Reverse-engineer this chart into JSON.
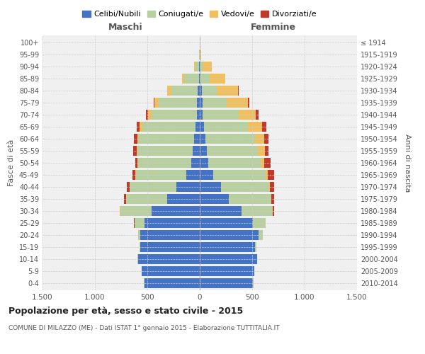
{
  "age_groups": [
    "100+",
    "95-99",
    "90-94",
    "85-89",
    "80-84",
    "75-79",
    "70-74",
    "65-69",
    "60-64",
    "55-59",
    "50-54",
    "45-49",
    "40-44",
    "35-39",
    "30-34",
    "25-29",
    "20-24",
    "15-19",
    "10-14",
    "5-9",
    "0-4"
  ],
  "birth_years": [
    "≤ 1914",
    "1915-1919",
    "1920-1924",
    "1925-1929",
    "1930-1934",
    "1935-1939",
    "1940-1944",
    "1945-1949",
    "1950-1954",
    "1955-1959",
    "1960-1964",
    "1965-1969",
    "1970-1974",
    "1975-1979",
    "1980-1984",
    "1985-1989",
    "1990-1994",
    "1995-1999",
    "2000-2004",
    "2005-2009",
    "2010-2014"
  ],
  "males": {
    "celibe": [
      2,
      2,
      5,
      10,
      20,
      30,
      30,
      40,
      55,
      65,
      80,
      130,
      220,
      310,
      460,
      530,
      570,
      570,
      590,
      555,
      530
    ],
    "coniugato": [
      0,
      3,
      35,
      140,
      250,
      360,
      430,
      510,
      530,
      530,
      510,
      480,
      450,
      390,
      300,
      95,
      20,
      5,
      3,
      1,
      1
    ],
    "vedovo": [
      0,
      2,
      12,
      22,
      38,
      42,
      32,
      22,
      12,
      8,
      5,
      3,
      2,
      2,
      1,
      0,
      0,
      0,
      0,
      0,
      0
    ],
    "divorziato": [
      0,
      0,
      0,
      0,
      0,
      5,
      22,
      30,
      32,
      32,
      22,
      32,
      22,
      20,
      5,
      2,
      0,
      0,
      0,
      0,
      0
    ]
  },
  "females": {
    "nubile": [
      2,
      2,
      5,
      10,
      20,
      30,
      30,
      40,
      55,
      65,
      80,
      130,
      200,
      280,
      400,
      510,
      560,
      530,
      545,
      520,
      510
    ],
    "coniugata": [
      0,
      2,
      22,
      85,
      145,
      230,
      340,
      420,
      470,
      490,
      500,
      500,
      460,
      400,
      295,
      115,
      40,
      10,
      3,
      1,
      1
    ],
    "vedova": [
      2,
      12,
      90,
      145,
      200,
      200,
      165,
      135,
      90,
      65,
      38,
      22,
      10,
      5,
      3,
      2,
      0,
      0,
      0,
      0,
      0
    ],
    "divorziata": [
      0,
      0,
      0,
      0,
      5,
      12,
      28,
      38,
      38,
      38,
      55,
      55,
      42,
      22,
      10,
      2,
      0,
      0,
      0,
      0,
      0
    ]
  },
  "colors": {
    "celibe": "#4472c4",
    "coniugato": "#b8cfa0",
    "vedovo": "#f0c060",
    "divorziato": "#c0392b"
  },
  "xlim": 1500,
  "xlabel_left": "Maschi",
  "xlabel_right": "Femmine",
  "ylabel_left": "Fasce di età",
  "ylabel_right": "Anni di nascita",
  "title": "Popolazione per età, sesso e stato civile - 2015",
  "subtitle": "COMUNE DI MILAZZO (ME) - Dati ISTAT 1° gennaio 2015 - Elaborazione TUTTITALIA.IT",
  "legend_labels": [
    "Celibi/Nubili",
    "Coniugati/e",
    "Vedovi/e",
    "Divorziati/e"
  ],
  "background_color": "#f0f0f0",
  "grid_color": "#cccccc",
  "xtick_labels": [
    "1.500",
    "1.000",
    "500",
    "0",
    "500",
    "1.000",
    "1.500"
  ]
}
